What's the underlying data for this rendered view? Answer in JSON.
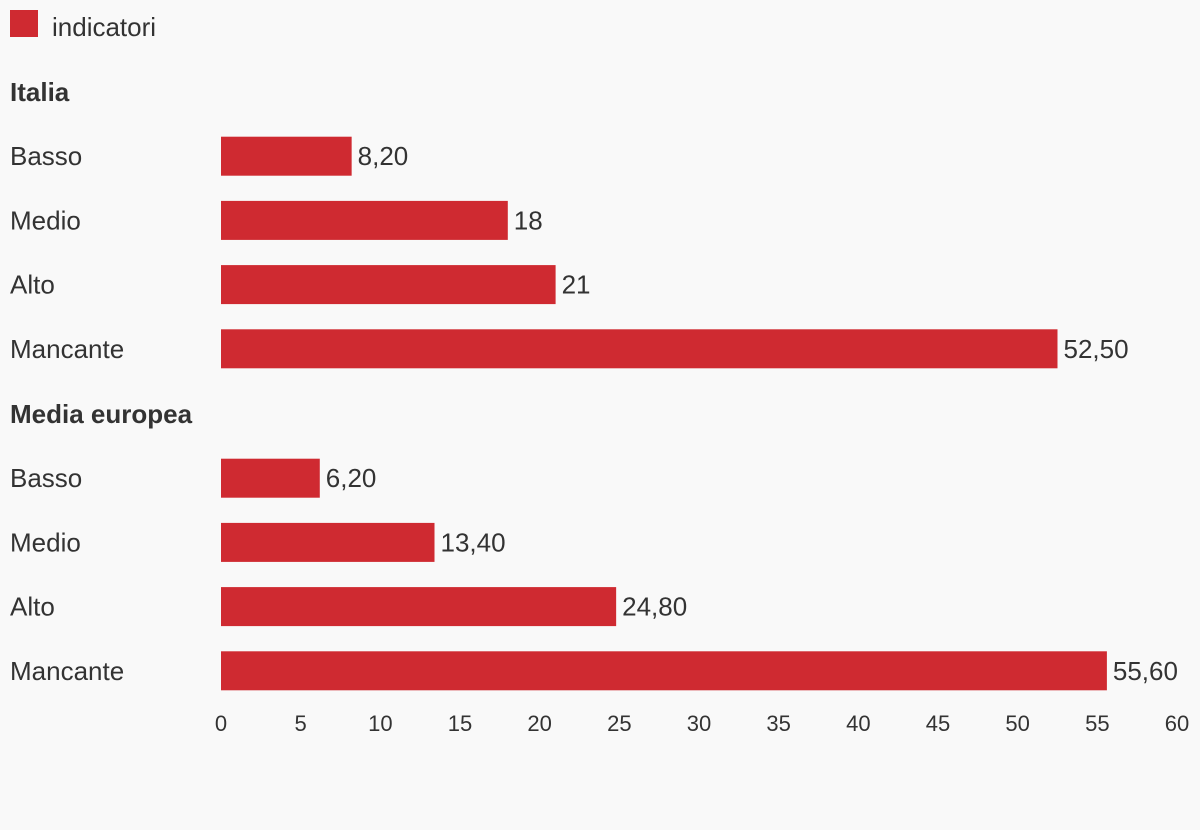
{
  "chart_data": {
    "type": "bar",
    "orientation": "horizontal",
    "legend": {
      "entries": [
        {
          "label": "indicatori",
          "color": "#cf2a31"
        }
      ],
      "placement": "top-left"
    },
    "groups": [
      {
        "label": "Italia",
        "rows": [
          {
            "label": "Basso",
            "value": 8.2,
            "display": "8,20"
          },
          {
            "label": "Medio",
            "value": 18,
            "display": "18"
          },
          {
            "label": "Alto",
            "value": 21,
            "display": "21"
          },
          {
            "label": "Mancante",
            "value": 52.5,
            "display": "52,50"
          }
        ]
      },
      {
        "label": "Media europea",
        "rows": [
          {
            "label": "Basso",
            "value": 6.2,
            "display": "6,20"
          },
          {
            "label": "Medio",
            "value": 13.4,
            "display": "13,40"
          },
          {
            "label": "Alto",
            "value": 24.8,
            "display": "24,80"
          },
          {
            "label": "Mancante",
            "value": 55.6,
            "display": "55,60"
          }
        ]
      }
    ],
    "xlim": [
      0,
      60
    ],
    "xticks": [
      0,
      5,
      10,
      15,
      20,
      25,
      30,
      35,
      40,
      45,
      50,
      55,
      60
    ],
    "grid": false,
    "bar_color": "#cf2a31"
  }
}
